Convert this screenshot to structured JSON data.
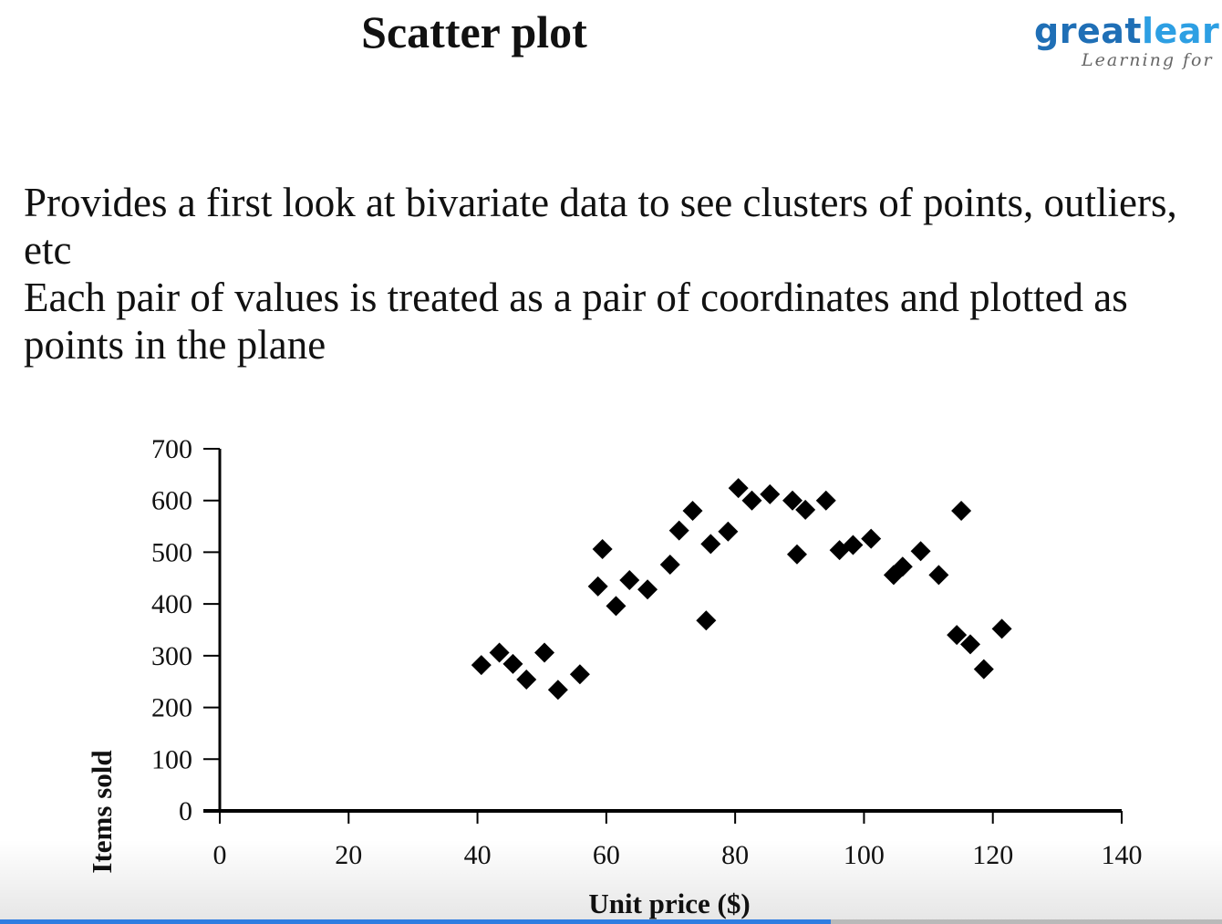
{
  "slide": {
    "title": "Scatter plot",
    "logo_part1": "great",
    "logo_part2": "lear",
    "logo_sub": "Learning for",
    "paragraphs": [
      "Provides a first look at bivariate data to see clusters of points, outliers, etc",
      "Each pair of values is treated as a pair of coordinates and plotted as points in the plane"
    ]
  },
  "player": {
    "progress": 0.68,
    "accent_color": "#2f7de1"
  },
  "chart_data": {
    "type": "scatter",
    "title": "",
    "xlabel": "Unit price ($)",
    "ylabel": "Items sold",
    "xlim": [
      0,
      140
    ],
    "ylim": [
      0,
      700
    ],
    "xticks": [
      0,
      20,
      40,
      60,
      80,
      100,
      120,
      140
    ],
    "yticks": [
      0,
      100,
      200,
      300,
      400,
      500,
      600,
      700
    ],
    "grid": false,
    "legend": "none",
    "marker": "diamond",
    "marker_color": "#000000",
    "points": [
      {
        "x": 40.6,
        "y": 282
      },
      {
        "x": 43.4,
        "y": 306
      },
      {
        "x": 45.5,
        "y": 284
      },
      {
        "x": 47.6,
        "y": 254
      },
      {
        "x": 50.4,
        "y": 306
      },
      {
        "x": 52.5,
        "y": 234
      },
      {
        "x": 55.9,
        "y": 264
      },
      {
        "x": 58.7,
        "y": 434
      },
      {
        "x": 59.4,
        "y": 506
      },
      {
        "x": 61.5,
        "y": 396
      },
      {
        "x": 63.6,
        "y": 446
      },
      {
        "x": 66.4,
        "y": 428
      },
      {
        "x": 69.9,
        "y": 476
      },
      {
        "x": 71.3,
        "y": 542
      },
      {
        "x": 73.4,
        "y": 580
      },
      {
        "x": 75.5,
        "y": 368
      },
      {
        "x": 76.2,
        "y": 516
      },
      {
        "x": 78.9,
        "y": 540
      },
      {
        "x": 80.5,
        "y": 624
      },
      {
        "x": 82.6,
        "y": 600
      },
      {
        "x": 85.4,
        "y": 612
      },
      {
        "x": 88.9,
        "y": 600
      },
      {
        "x": 89.6,
        "y": 496
      },
      {
        "x": 90.9,
        "y": 582
      },
      {
        "x": 94.1,
        "y": 600
      },
      {
        "x": 96.2,
        "y": 504
      },
      {
        "x": 98.3,
        "y": 514
      },
      {
        "x": 101.1,
        "y": 526
      },
      {
        "x": 104.6,
        "y": 456
      },
      {
        "x": 106.0,
        "y": 472
      },
      {
        "x": 108.8,
        "y": 502
      },
      {
        "x": 111.6,
        "y": 456
      },
      {
        "x": 114.4,
        "y": 340
      },
      {
        "x": 115.1,
        "y": 580
      },
      {
        "x": 116.5,
        "y": 322
      },
      {
        "x": 118.6,
        "y": 274
      },
      {
        "x": 121.4,
        "y": 352
      }
    ]
  }
}
